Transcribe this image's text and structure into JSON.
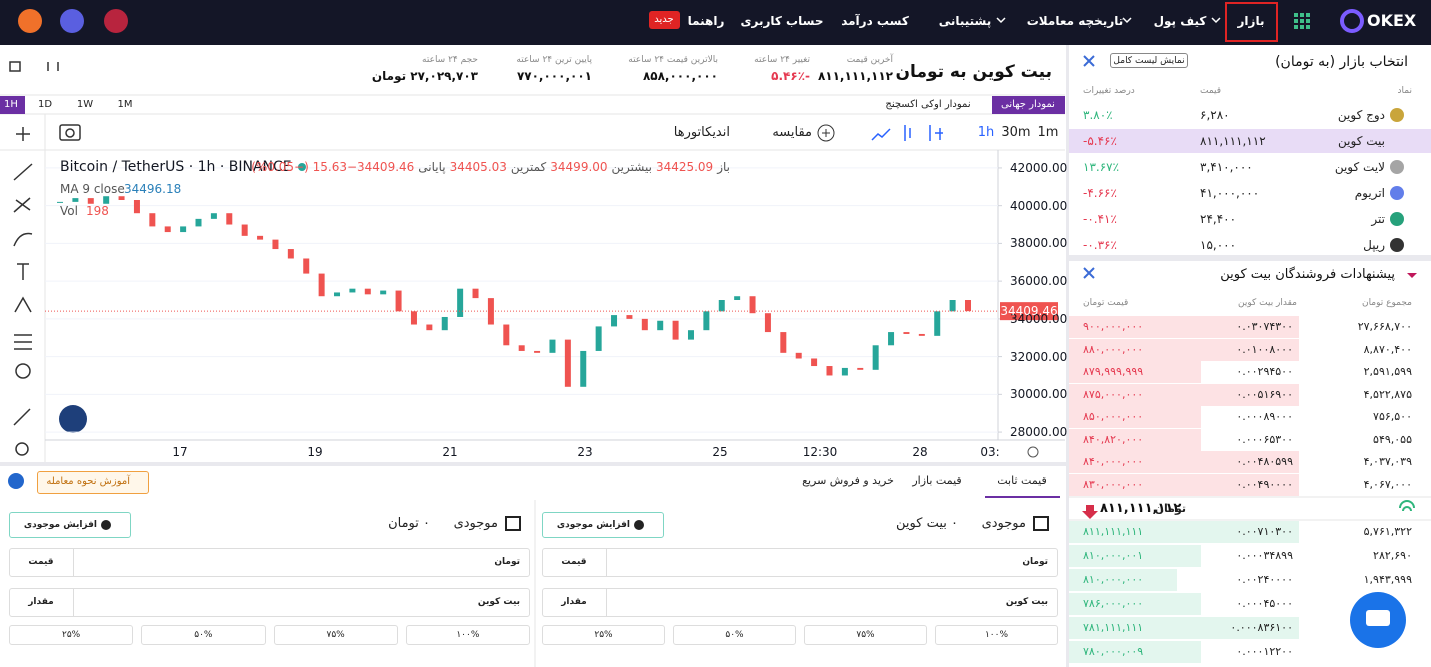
{
  "nav": {
    "logo": "OKEX",
    "items": [
      "بازار",
      "کیف پول",
      "تاریخچه معاملات",
      "پشتیبانی",
      "کسب درآمد",
      "حساب کاربری",
      "راهنما"
    ],
    "badge": "جدید"
  },
  "header": {
    "title": "بیت کوین به تومان",
    "stats": [
      {
        "label": "آخرین قیمت",
        "value": "۸۱۱,۱۱۱,۱۱۲",
        "color": "#111"
      },
      {
        "label": "تغییر ۲۴ ساعته",
        "value": "-۵.۴۶٪",
        "color": "#e53950"
      },
      {
        "label": "بالاترین قیمت ۲۴ ساعته",
        "value": "۸۵۸,۰۰۰,۰۰۰",
        "color": "#111"
      },
      {
        "label": "پایین ترین ۲۴ ساعته",
        "value": "۷۷۰,۰۰۰,۰۰۱",
        "color": "#111"
      },
      {
        "label": "حجم ۲۴ ساعته",
        "value": "۲۷,۰۲۹,۷۰۳ تومان",
        "color": "#111"
      }
    ]
  },
  "chart_tabs": [
    "نمودار جهانی",
    "نمودار اوکی اکسچنج"
  ],
  "intervals": [
    "1H",
    "1D",
    "1W",
    "1M"
  ],
  "toolbar": {
    "timeframes": [
      "1m",
      "30m",
      "1h"
    ],
    "compare": "مقایسه",
    "indicators": "اندیکاتورها"
  },
  "chart_data": {
    "type": "candlestick",
    "symbol": "Bitcoin / TetherUS · 1h · BINANCE",
    "ohlc": [
      {
        "label": "باز",
        "value": "34425.09"
      },
      {
        "label": "بیشترین",
        "value": "34499.00"
      },
      {
        "label": "کمترین",
        "value": "34405.03"
      },
      {
        "label": "پایانی",
        "value": "34409.46−15.63 (−0.05%)"
      }
    ],
    "ma_label": "MA 9 close",
    "ma_value": "34496.18",
    "vol_label": "Vol",
    "vol_value": "198",
    "close": [
      40200,
      40400,
      40100,
      40500,
      40300,
      39600,
      38900,
      38600,
      38900,
      39300,
      39600,
      39000,
      38400,
      38200,
      37700,
      37200,
      36400,
      35200,
      35400,
      35600,
      35300,
      35500,
      34400,
      33700,
      33400,
      34100,
      35600,
      35100,
      33700,
      32600,
      32300,
      32200,
      32900,
      30400,
      32300,
      33600,
      34200,
      34000,
      33400,
      33900,
      32900,
      33400,
      34400,
      35000,
      35200,
      34300,
      33300,
      32200,
      31900,
      31500,
      31000,
      31400,
      31300,
      32600,
      33300,
      33200,
      33100,
      34400,
      35000,
      34409.46
    ],
    "ylim": [
      27580,
      42950
    ],
    "yticks": [
      {
        "value": 28000,
        "label": "28000.00"
      },
      {
        "value": 30000,
        "label": "30000.00"
      },
      {
        "value": 32000,
        "label": "32000.00"
      },
      {
        "value": 34000,
        "label": "34000.00"
      },
      {
        "value": 36000,
        "label": "36000.00"
      },
      {
        "value": 38000,
        "label": "38000.00"
      },
      {
        "value": 40000,
        "label": "40000.00"
      },
      {
        "value": 42000,
        "label": "42000.00"
      }
    ],
    "xticks": [
      "17",
      "19",
      "21",
      "23",
      "25",
      "12:30",
      "28",
      "03:"
    ],
    "last_price": {
      "value": 34409.46,
      "label": "34409.46"
    },
    "up_color": "#26a69a",
    "down_color": "#ef5350"
  },
  "markets": {
    "title": "انتخاب بازار (به تومان)",
    "button": "نمایش لیست کامل",
    "columns": [
      "نماد",
      "قیمت",
      "درصد تغییرات"
    ],
    "rows": [
      {
        "name": "دوج کوین",
        "price": "۶,۲۸۰",
        "change": "۳.۸۰٪",
        "color": "#2fb67c"
      },
      {
        "name": "بیت کوین",
        "price": "۸۱۱,۱۱۱,۱۱۲",
        "change": "-۵.۴۶٪",
        "color": "#e53950"
      },
      {
        "name": "لایت کوین",
        "price": "۳,۴۱۰,۰۰۰",
        "change": "۱۳.۶۷٪",
        "color": "#2fb67c"
      },
      {
        "name": "اتریوم",
        "price": "۴۱,۰۰۰,۰۰۰",
        "change": "-۴.۶۶٪",
        "color": "#e53950"
      },
      {
        "name": "تتر",
        "price": "۲۴,۴۰۰",
        "change": "-۰.۴۱٪",
        "color": "#e53950"
      },
      {
        "name": "ریپل",
        "price": "۱۵,۰۰۰",
        "change": "-۰.۳۶٪",
        "color": "#e53950"
      }
    ]
  },
  "orderbook": {
    "title": "پیشنهادات فروشندگان بیت کوین",
    "columns": [
      "مجموع تومان",
      "مقدار بیت کوین",
      "قیمت تومان"
    ],
    "asks": [
      {
        "price": "۹۰۰,۰۰۰,۰۰۰",
        "amount": "۰.۰۳۰۷۴۳۰۰",
        "total": "۲۷,۶۶۸,۷۰۰"
      },
      {
        "price": "۸۸۰,۰۰۰,۰۰۰",
        "amount": "۰.۰۱۰۰۸۰۰۰",
        "total": "۸,۸۷۰,۴۰۰"
      },
      {
        "price": "۸۷۹,۹۹۹,۹۹۹",
        "amount": "۰.۰۰۲۹۴۵۰۰",
        "total": "۲,۵۹۱,۵۹۹"
      },
      {
        "price": "۸۷۵,۰۰۰,۰۰۰",
        "amount": "۰.۰۰۵۱۶۹۰۰",
        "total": "۴,۵۲۲,۸۷۵"
      },
      {
        "price": "۸۵۰,۰۰۰,۰۰۰",
        "amount": "۰.۰۰۰۸۹۰۰۰",
        "total": "۷۵۶,۵۰۰"
      },
      {
        "price": "۸۴۰,۸۲۰,۰۰۰",
        "amount": "۰.۰۰۰۶۵۳۰۰",
        "total": "۵۴۹,۰۵۵"
      },
      {
        "price": "۸۴۰,۰۰۰,۰۰۰",
        "amount": "۰.۰۰۴۸۰۵۹۹",
        "total": "۴,۰۳۷,۰۳۹"
      },
      {
        "price": "۸۳۰,۰۰۰,۰۰۰",
        "amount": "۰.۰۰۴۹۰۰۰۰",
        "total": "۴,۰۶۷,۰۰۰"
      }
    ],
    "last_price": "۸۱۱,۱۱۱,۱۱۲",
    "last_unit": "تومان",
    "bids": [
      {
        "price": "۸۱۱,۱۱۱,۱۱۱",
        "amount": "۰.۰۰۷۱۰۳۰۰",
        "total": "۵,۷۶۱,۳۲۲"
      },
      {
        "price": "۸۱۰,۰۰۰,۰۰۱",
        "amount": "۰.۰۰۰۳۴۸۹۹",
        "total": "۲۸۲,۶۹۰"
      },
      {
        "price": "۸۱۰,۰۰۰,۰۰۰",
        "amount": "۰.۰۰۲۴۰۰۰۰",
        "total": "۱,۹۴۳,۹۹۹"
      },
      {
        "price": "۷۸۶,۰۰۰,۰۰۰",
        "amount": "۰.۰۰۰۴۵۰۰۰"
      },
      {
        "price": "۷۸۱,۱۱۱,۱۱۱",
        "amount": "۰.۰۰۰۸۳۶۱۰۰"
      },
      {
        "price": "۷۸۰,۰۰۰,۰۰۹",
        "amount": "۰.۰۰۰۱۲۲۰۰"
      }
    ]
  },
  "trade": {
    "tabs": [
      "قیمت ثابت",
      "قیمت بازار",
      "خرید و فروش سریع"
    ],
    "tutorial": "آموزش نحوه معامله",
    "forms": [
      {
        "balance_label": "موجودی",
        "balance": "۰ بیت کوین",
        "deposit": "افزایش موجودی",
        "fields": [
          {
            "label": "قیمت",
            "unit": "تومان"
          },
          {
            "label": "مقدار",
            "unit": "بیت کوین"
          }
        ],
        "percents": [
          "۱۰۰%",
          "۷۵%",
          "۵۰%",
          "۲۵%"
        ]
      },
      {
        "balance_label": "موجودی",
        "balance": "۰ تومان",
        "deposit": "افزایش موجودی",
        "fields": [
          {
            "label": "قیمت",
            "unit": "تومان"
          },
          {
            "label": "مقدار",
            "unit": "بیت کوین"
          }
        ],
        "percents": [
          "۱۰۰%",
          "۷۵%",
          "۵۰%",
          "۲۵%"
        ]
      }
    ]
  }
}
